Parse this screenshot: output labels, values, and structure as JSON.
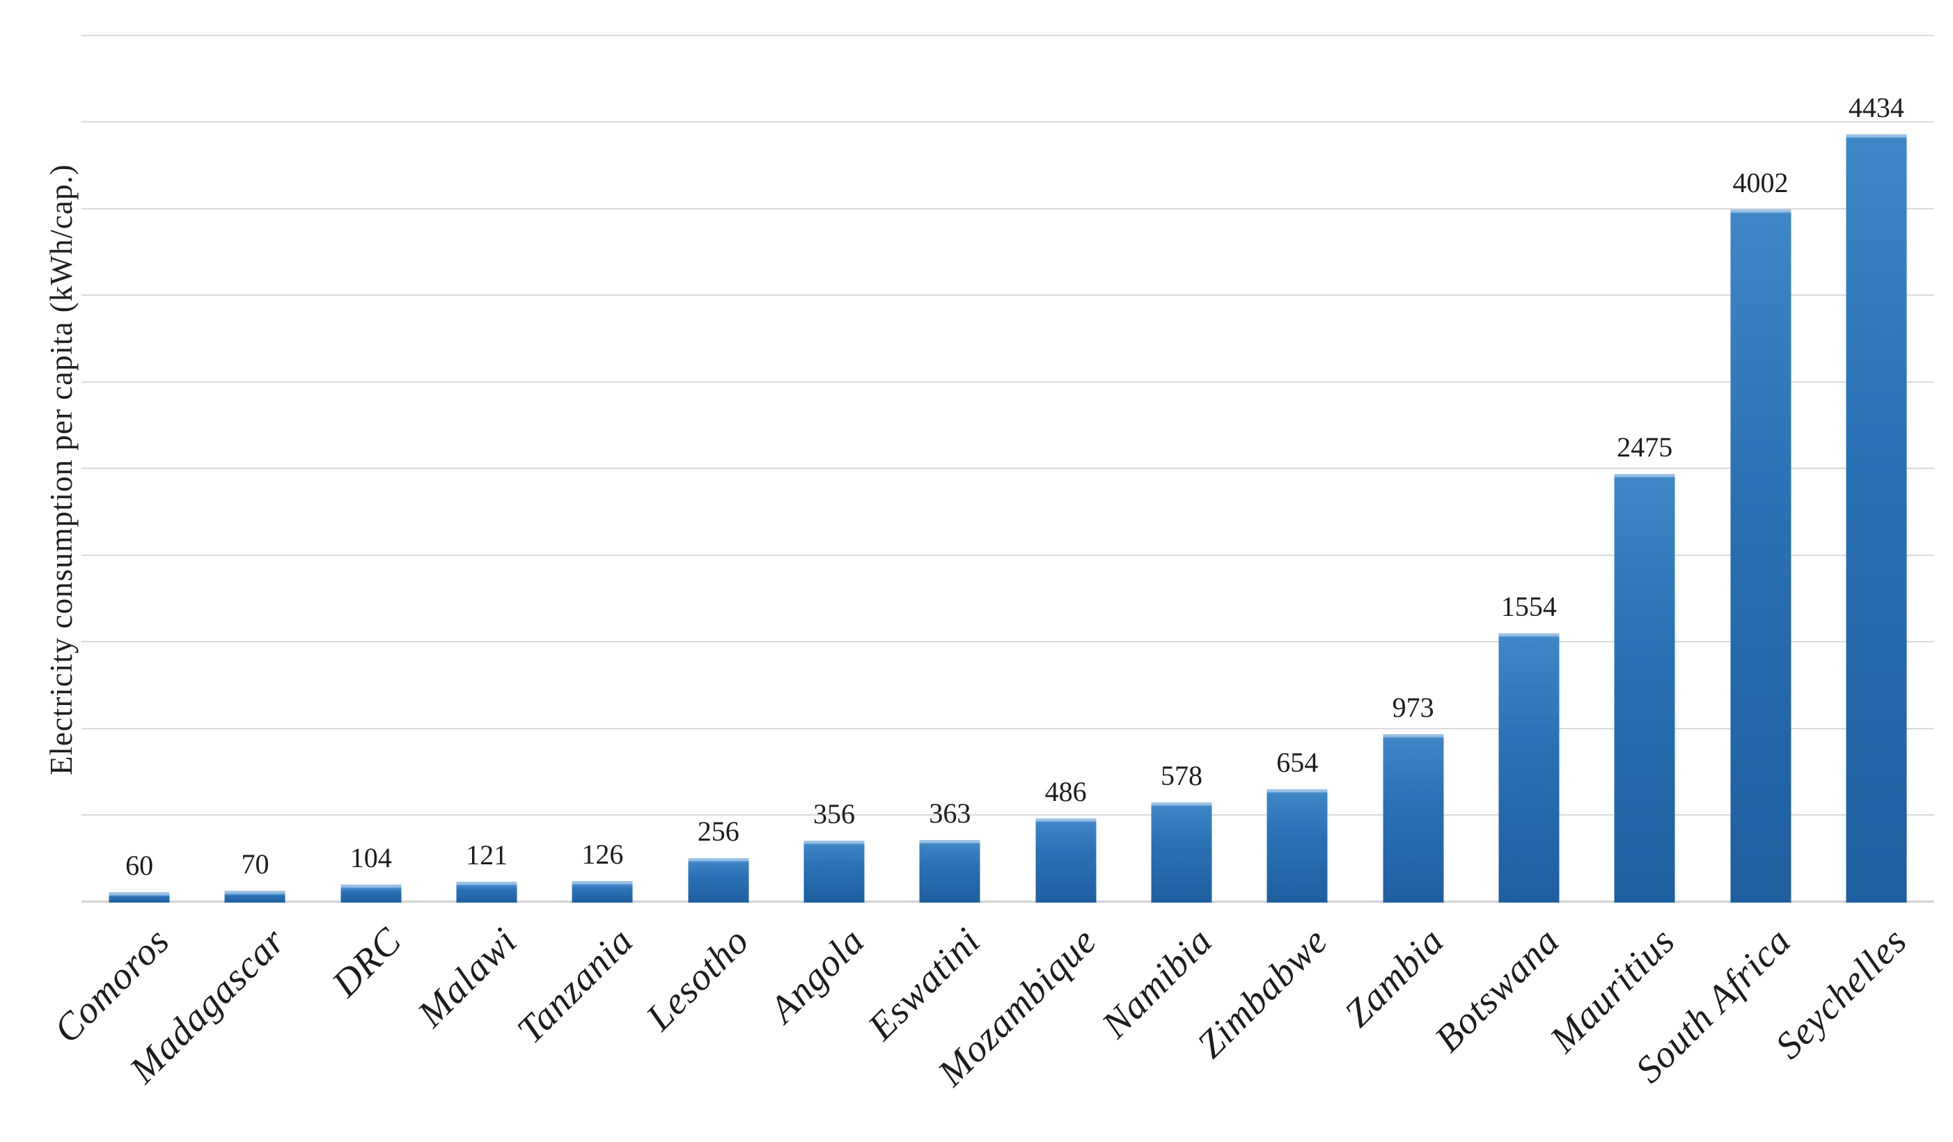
{
  "figure": {
    "background": "#ffffff",
    "text_color": "#1c1c1c"
  },
  "chart_data": {
    "type": "bar",
    "title": "",
    "xlabel": "",
    "ylabel": "Electricity consumption per capita (kWh/cap.)",
    "categories": [
      "Comoros",
      "Madagascar",
      "DRC",
      "Malawi",
      "Tanzania",
      "Lesotho",
      "Angola",
      "Eswatini",
      "Mozambique",
      "Namibia",
      "Zimbabwe",
      "Zambia",
      "Botswana",
      "Mauritius",
      "South Africa",
      "Seychelles"
    ],
    "values": [
      60,
      70,
      104,
      121,
      126,
      256,
      356,
      363,
      486,
      578,
      654,
      973,
      1554,
      2475,
      4002,
      4434
    ],
    "value_labels": [
      "60",
      "70",
      "104",
      "121",
      "126",
      "256",
      "356",
      "363",
      "486",
      "578",
      "654",
      "973",
      "1554",
      "2475",
      "4002",
      "4434"
    ],
    "ylim": [
      0,
      5000
    ],
    "gridline_step": 500,
    "grid": "horizontal-only",
    "y_tick_labels_visible": false,
    "legend": "none",
    "x_label_rotation_deg": 45,
    "colors": {
      "bar_main": "#2e75b6",
      "bar_gradient_top": "#3f86c6",
      "bar_gradient_bottom": "#1e5f9f",
      "bar_top_cap": "#9dc3e6",
      "gridline": "#dadada",
      "label_text": "#1c1c1c"
    }
  }
}
